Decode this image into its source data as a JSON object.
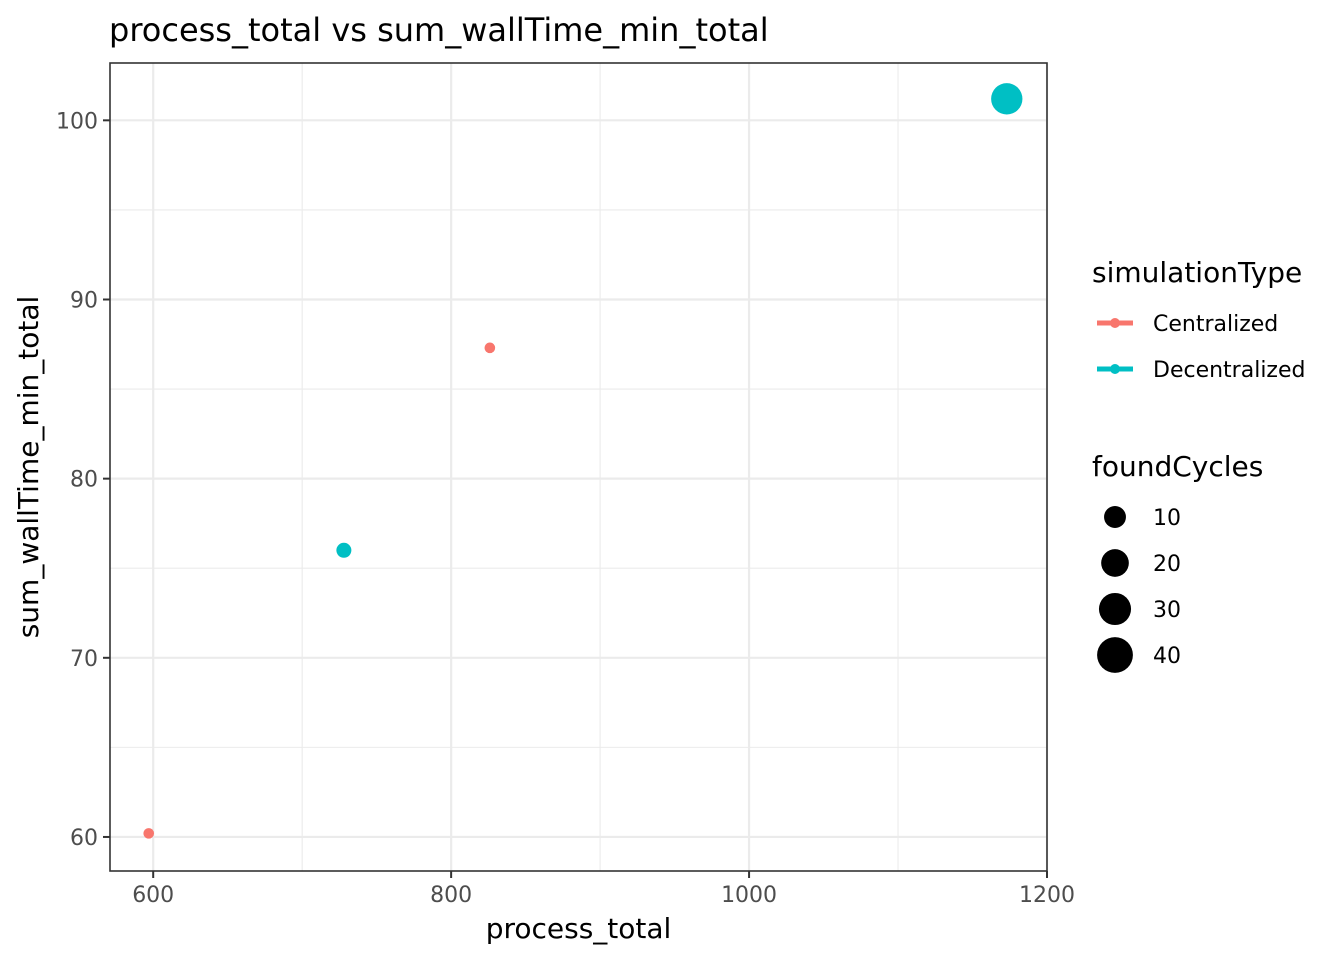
{
  "chart_data": {
    "type": "scatter",
    "title": "process_total  vs  sum_wallTime_min_total",
    "xlabel": "process_total",
    "ylabel": "sum_wallTime_min_total",
    "xlim": [
      571,
      1200
    ],
    "ylim": [
      58.1,
      103.2
    ],
    "x_ticks": [
      600,
      800,
      1000,
      1200
    ],
    "x_minor_ticks": [
      700,
      900,
      1100
    ],
    "y_ticks": [
      60,
      70,
      80,
      90,
      100
    ],
    "y_minor_ticks": [
      65,
      75,
      85,
      95
    ],
    "grid": true,
    "legend_position": "right",
    "color_legend": {
      "title": "simulationType",
      "entries": [
        {
          "label": "Centralized",
          "color": "#F8766D"
        },
        {
          "label": "Decentralized",
          "color": "#00BFC4"
        }
      ]
    },
    "size_legend": {
      "title": "foundCycles",
      "entries": [
        {
          "label": "10",
          "value": 10
        },
        {
          "label": "20",
          "value": 20
        },
        {
          "label": "30",
          "value": 30
        },
        {
          "label": "40",
          "value": 40
        }
      ]
    },
    "series": [
      {
        "name": "Centralized",
        "color": "#F8766D",
        "points": [
          {
            "x": 597,
            "y": 60.2,
            "size": 4
          },
          {
            "x": 826,
            "y": 87.3,
            "size": 4
          }
        ]
      },
      {
        "name": "Decentralized",
        "color": "#00BFC4",
        "points": [
          {
            "x": 728,
            "y": 76.0,
            "size": 9
          },
          {
            "x": 1173,
            "y": 101.2,
            "size": 45
          }
        ]
      }
    ]
  }
}
